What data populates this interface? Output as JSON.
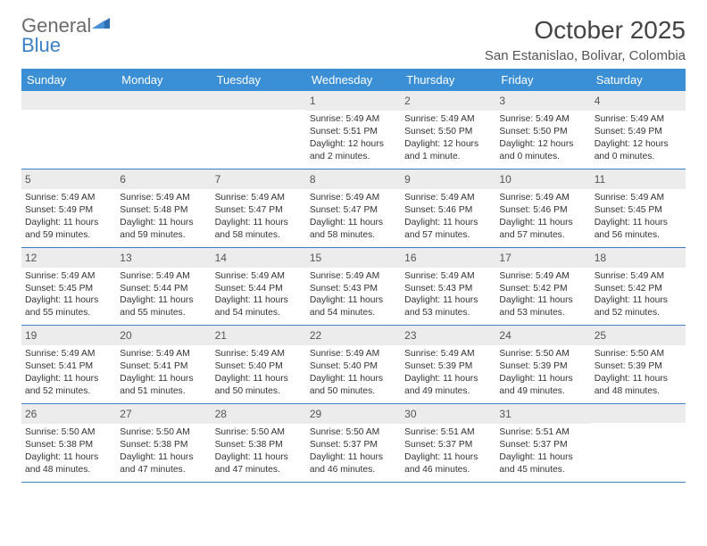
{
  "logo": {
    "part1": "General",
    "part2": "Blue"
  },
  "title": "October 2025",
  "location": "San Estanislao, Bolivar, Colombia",
  "colors": {
    "header_bg": "#3b8fd4",
    "header_text": "#ffffff",
    "daynum_bg": "#ececec",
    "border": "#3b7fc4",
    "logo_gray": "#6b6b6b",
    "logo_blue": "#3b7fc4"
  },
  "day_names": [
    "Sunday",
    "Monday",
    "Tuesday",
    "Wednesday",
    "Thursday",
    "Friday",
    "Saturday"
  ],
  "weeks": [
    [
      {
        "n": "",
        "lines": []
      },
      {
        "n": "",
        "lines": []
      },
      {
        "n": "",
        "lines": []
      },
      {
        "n": "1",
        "lines": [
          "Sunrise: 5:49 AM",
          "Sunset: 5:51 PM",
          "Daylight: 12 hours and 2 minutes."
        ]
      },
      {
        "n": "2",
        "lines": [
          "Sunrise: 5:49 AM",
          "Sunset: 5:50 PM",
          "Daylight: 12 hours and 1 minute."
        ]
      },
      {
        "n": "3",
        "lines": [
          "Sunrise: 5:49 AM",
          "Sunset: 5:50 PM",
          "Daylight: 12 hours and 0 minutes."
        ]
      },
      {
        "n": "4",
        "lines": [
          "Sunrise: 5:49 AM",
          "Sunset: 5:49 PM",
          "Daylight: 12 hours and 0 minutes."
        ]
      }
    ],
    [
      {
        "n": "5",
        "lines": [
          "Sunrise: 5:49 AM",
          "Sunset: 5:49 PM",
          "Daylight: 11 hours and 59 minutes."
        ]
      },
      {
        "n": "6",
        "lines": [
          "Sunrise: 5:49 AM",
          "Sunset: 5:48 PM",
          "Daylight: 11 hours and 59 minutes."
        ]
      },
      {
        "n": "7",
        "lines": [
          "Sunrise: 5:49 AM",
          "Sunset: 5:47 PM",
          "Daylight: 11 hours and 58 minutes."
        ]
      },
      {
        "n": "8",
        "lines": [
          "Sunrise: 5:49 AM",
          "Sunset: 5:47 PM",
          "Daylight: 11 hours and 58 minutes."
        ]
      },
      {
        "n": "9",
        "lines": [
          "Sunrise: 5:49 AM",
          "Sunset: 5:46 PM",
          "Daylight: 11 hours and 57 minutes."
        ]
      },
      {
        "n": "10",
        "lines": [
          "Sunrise: 5:49 AM",
          "Sunset: 5:46 PM",
          "Daylight: 11 hours and 57 minutes."
        ]
      },
      {
        "n": "11",
        "lines": [
          "Sunrise: 5:49 AM",
          "Sunset: 5:45 PM",
          "Daylight: 11 hours and 56 minutes."
        ]
      }
    ],
    [
      {
        "n": "12",
        "lines": [
          "Sunrise: 5:49 AM",
          "Sunset: 5:45 PM",
          "Daylight: 11 hours and 55 minutes."
        ]
      },
      {
        "n": "13",
        "lines": [
          "Sunrise: 5:49 AM",
          "Sunset: 5:44 PM",
          "Daylight: 11 hours and 55 minutes."
        ]
      },
      {
        "n": "14",
        "lines": [
          "Sunrise: 5:49 AM",
          "Sunset: 5:44 PM",
          "Daylight: 11 hours and 54 minutes."
        ]
      },
      {
        "n": "15",
        "lines": [
          "Sunrise: 5:49 AM",
          "Sunset: 5:43 PM",
          "Daylight: 11 hours and 54 minutes."
        ]
      },
      {
        "n": "16",
        "lines": [
          "Sunrise: 5:49 AM",
          "Sunset: 5:43 PM",
          "Daylight: 11 hours and 53 minutes."
        ]
      },
      {
        "n": "17",
        "lines": [
          "Sunrise: 5:49 AM",
          "Sunset: 5:42 PM",
          "Daylight: 11 hours and 53 minutes."
        ]
      },
      {
        "n": "18",
        "lines": [
          "Sunrise: 5:49 AM",
          "Sunset: 5:42 PM",
          "Daylight: 11 hours and 52 minutes."
        ]
      }
    ],
    [
      {
        "n": "19",
        "lines": [
          "Sunrise: 5:49 AM",
          "Sunset: 5:41 PM",
          "Daylight: 11 hours and 52 minutes."
        ]
      },
      {
        "n": "20",
        "lines": [
          "Sunrise: 5:49 AM",
          "Sunset: 5:41 PM",
          "Daylight: 11 hours and 51 minutes."
        ]
      },
      {
        "n": "21",
        "lines": [
          "Sunrise: 5:49 AM",
          "Sunset: 5:40 PM",
          "Daylight: 11 hours and 50 minutes."
        ]
      },
      {
        "n": "22",
        "lines": [
          "Sunrise: 5:49 AM",
          "Sunset: 5:40 PM",
          "Daylight: 11 hours and 50 minutes."
        ]
      },
      {
        "n": "23",
        "lines": [
          "Sunrise: 5:49 AM",
          "Sunset: 5:39 PM",
          "Daylight: 11 hours and 49 minutes."
        ]
      },
      {
        "n": "24",
        "lines": [
          "Sunrise: 5:50 AM",
          "Sunset: 5:39 PM",
          "Daylight: 11 hours and 49 minutes."
        ]
      },
      {
        "n": "25",
        "lines": [
          "Sunrise: 5:50 AM",
          "Sunset: 5:39 PM",
          "Daylight: 11 hours and 48 minutes."
        ]
      }
    ],
    [
      {
        "n": "26",
        "lines": [
          "Sunrise: 5:50 AM",
          "Sunset: 5:38 PM",
          "Daylight: 11 hours and 48 minutes."
        ]
      },
      {
        "n": "27",
        "lines": [
          "Sunrise: 5:50 AM",
          "Sunset: 5:38 PM",
          "Daylight: 11 hours and 47 minutes."
        ]
      },
      {
        "n": "28",
        "lines": [
          "Sunrise: 5:50 AM",
          "Sunset: 5:38 PM",
          "Daylight: 11 hours and 47 minutes."
        ]
      },
      {
        "n": "29",
        "lines": [
          "Sunrise: 5:50 AM",
          "Sunset: 5:37 PM",
          "Daylight: 11 hours and 46 minutes."
        ]
      },
      {
        "n": "30",
        "lines": [
          "Sunrise: 5:51 AM",
          "Sunset: 5:37 PM",
          "Daylight: 11 hours and 46 minutes."
        ]
      },
      {
        "n": "31",
        "lines": [
          "Sunrise: 5:51 AM",
          "Sunset: 5:37 PM",
          "Daylight: 11 hours and 45 minutes."
        ]
      },
      {
        "n": "",
        "lines": []
      }
    ]
  ]
}
